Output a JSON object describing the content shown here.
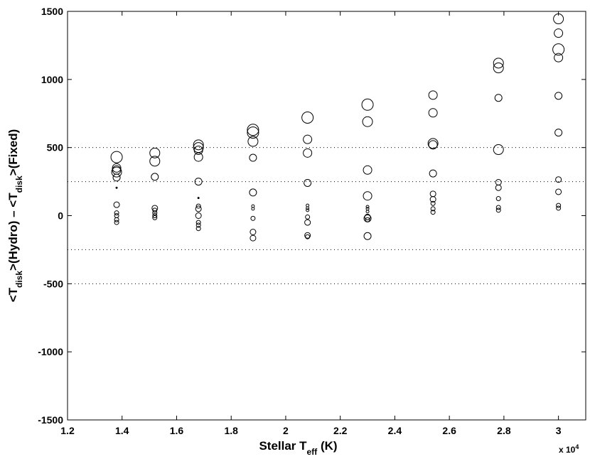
{
  "chart_data": {
    "type": "scatter",
    "xlabel": [
      "Stellar T",
      "eff",
      " (K)"
    ],
    "ylabel": [
      "<T",
      "disk",
      ">(Hydro) – <T",
      "disk",
      ">(Fixed)"
    ],
    "x_multiplier": [
      "x 10",
      "4"
    ],
    "xlim": [
      12000,
      31000
    ],
    "xticks": [
      {
        "value": 12000,
        "label": "1.2"
      },
      {
        "value": 14000,
        "label": "1.4"
      },
      {
        "value": 16000,
        "label": "1.6"
      },
      {
        "value": 18000,
        "label": "1.8"
      },
      {
        "value": 20000,
        "label": "2"
      },
      {
        "value": 22000,
        "label": "2.2"
      },
      {
        "value": 24000,
        "label": "2.4"
      },
      {
        "value": 26000,
        "label": "2.6"
      },
      {
        "value": 28000,
        "label": "2.8"
      },
      {
        "value": 30000,
        "label": "3"
      }
    ],
    "ylim": [
      -1500,
      1500
    ],
    "yticks": [
      -1500,
      -1000,
      -500,
      0,
      500,
      1000,
      1500
    ],
    "reference_lines": [
      500,
      250,
      -250,
      -500
    ],
    "color": "#000000",
    "x": [
      13800,
      13800,
      13800,
      13800,
      13800,
      13800,
      13800,
      13800,
      13800,
      13800,
      13800,
      15200,
      15200,
      15200,
      15200,
      15200,
      15200,
      15200,
      15200,
      16800,
      16800,
      16800,
      16800,
      16800,
      16800,
      16800,
      16800,
      16800,
      16800,
      16800,
      16800,
      18800,
      18800,
      18800,
      18800,
      18800,
      18800,
      18800,
      18800,
      18800,
      18800,
      20800,
      20800,
      20800,
      20800,
      20800,
      20800,
      20800,
      20800,
      20800,
      20800,
      20800,
      23000,
      23000,
      23000,
      23000,
      23000,
      23000,
      23000,
      23000,
      23000,
      23000,
      23000,
      25400,
      25400,
      25400,
      25400,
      25400,
      25400,
      25400,
      25400,
      25400,
      25400,
      27800,
      27800,
      27800,
      27800,
      27800,
      27800,
      27800,
      27800,
      27800,
      30000,
      30000,
      30000,
      30000,
      30000,
      30000,
      30000,
      30000,
      30000,
      30000
    ],
    "y": [
      430,
      350,
      335,
      320,
      280,
      205,
      80,
      20,
      0,
      -30,
      -50,
      460,
      400,
      285,
      55,
      40,
      20,
      0,
      -15,
      520,
      500,
      480,
      430,
      250,
      130,
      70,
      50,
      0,
      -50,
      -70,
      -95,
      630,
      610,
      545,
      425,
      170,
      70,
      50,
      -20,
      -120,
      -165,
      720,
      560,
      460,
      240,
      75,
      55,
      40,
      -10,
      -50,
      -145,
      -155,
      815,
      690,
      335,
      145,
      65,
      50,
      30,
      -10,
      -20,
      -30,
      -150,
      885,
      755,
      530,
      520,
      310,
      160,
      120,
      90,
      50,
      25,
      1120,
      1085,
      865,
      485,
      245,
      205,
      125,
      60,
      40,
      1445,
      1340,
      1220,
      1160,
      880,
      610,
      265,
      175,
      75,
      55
    ],
    "sizes": [
      8,
      6,
      6,
      7,
      5,
      1,
      4,
      3,
      3,
      3,
      3,
      7,
      7,
      5,
      4,
      3,
      3,
      3,
      3,
      7,
      7,
      6,
      6,
      5,
      1,
      3,
      4,
      4,
      3,
      3,
      3,
      8,
      8,
      7,
      5,
      5,
      2,
      2,
      3,
      4,
      4,
      8,
      6,
      6,
      5,
      2,
      2,
      2,
      3,
      4,
      4,
      3,
      8,
      7,
      6,
      6,
      2,
      2,
      2,
      4,
      5,
      3,
      5,
      6,
      6,
      7,
      6,
      5,
      4,
      4,
      3,
      3,
      3,
      7,
      7,
      5,
      7,
      4,
      4,
      3,
      3,
      3,
      7,
      6,
      8,
      6,
      5,
      5,
      4,
      4,
      3,
      3
    ]
  }
}
